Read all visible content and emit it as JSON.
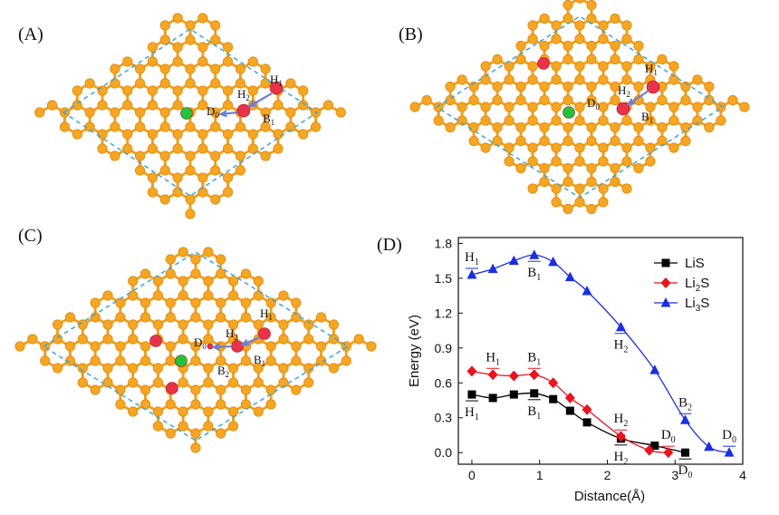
{
  "panels": {
    "A": {
      "label": "(A)",
      "sites": [
        {
          "name": "H",
          "sub": "1"
        },
        {
          "name": "H",
          "sub": "2"
        },
        {
          "name": "D",
          "sub": "0"
        },
        {
          "name": "B",
          "sub": "1"
        }
      ]
    },
    "B": {
      "label": "(B)",
      "sites": [
        {
          "name": "H",
          "sub": "1"
        },
        {
          "name": "H",
          "sub": "2"
        },
        {
          "name": "D",
          "sub": "0"
        },
        {
          "name": "B",
          "sub": "1"
        }
      ]
    },
    "C": {
      "label": "(C)",
      "sites": [
        {
          "name": "H",
          "sub": "1"
        },
        {
          "name": "H",
          "sub": "2"
        },
        {
          "name": "D",
          "sub": "0"
        },
        {
          "name": "B",
          "sub": "1"
        },
        {
          "name": "B",
          "sub": "2"
        }
      ]
    },
    "D": {
      "label": "(D)"
    }
  },
  "colors": {
    "carbon": "#f5a623",
    "bond": "#f0a020",
    "li": "#e8334a",
    "s": "#22c33a",
    "cell": "#3aa6d8",
    "arrow": "#6a7fd6"
  },
  "chart_data": {
    "type": "line",
    "xlabel": "Distance(Å)",
    "ylabel": "Energy (eV)",
    "xlim": [
      -0.2,
      4
    ],
    "ylim": [
      -0.1,
      1.85
    ],
    "xticks": [
      0,
      1,
      2,
      3,
      4
    ],
    "yticks": [
      0.0,
      0.3,
      0.6,
      0.9,
      1.2,
      1.5,
      1.8
    ],
    "legend_position": "top-right",
    "series": [
      {
        "name": "LiS",
        "name_main": "LiS",
        "name_sub": "",
        "name_tail": "",
        "color": "#000000",
        "marker": "square",
        "x": [
          0.0,
          0.31,
          0.62,
          0.92,
          1.2,
          1.45,
          1.7,
          2.2,
          2.7,
          3.15
        ],
        "y": [
          0.5,
          0.47,
          0.5,
          0.51,
          0.46,
          0.36,
          0.26,
          0.12,
          0.06,
          0.0
        ],
        "annotations": [
          {
            "name": "H",
            "sub": "1",
            "x": 0.0,
            "y": 0.5,
            "pos": "below"
          },
          {
            "name": "B",
            "sub": "1",
            "x": 0.92,
            "y": 0.51,
            "pos": "below"
          },
          {
            "name": "H",
            "sub": "2",
            "x": 2.2,
            "y": 0.12,
            "pos": "below"
          },
          {
            "name": "D",
            "sub": "0",
            "x": 3.15,
            "y": 0.0,
            "pos": "below"
          }
        ]
      },
      {
        "name": "Li2S",
        "name_main": "Li",
        "name_sub": "2",
        "name_tail": "S",
        "color": "#e8141e",
        "marker": "diamond",
        "x": [
          0.0,
          0.31,
          0.62,
          0.92,
          1.2,
          1.45,
          1.7,
          2.2,
          2.62,
          2.9
        ],
        "y": [
          0.7,
          0.67,
          0.66,
          0.67,
          0.6,
          0.47,
          0.37,
          0.14,
          0.02,
          0.0
        ],
        "annotations": [
          {
            "name": "H",
            "sub": "1",
            "x": 0.31,
            "y": 0.67,
            "pos": "above"
          },
          {
            "name": "B",
            "sub": "1",
            "x": 0.92,
            "y": 0.67,
            "pos": "above"
          },
          {
            "name": "H",
            "sub": "2",
            "x": 2.2,
            "y": 0.14,
            "pos": "above"
          },
          {
            "name": "D",
            "sub": "0",
            "x": 2.9,
            "y": 0.0,
            "pos": "above"
          }
        ]
      },
      {
        "name": "Li3S",
        "name_main": "Li",
        "name_sub": "3",
        "name_tail": "S",
        "color": "#1c2fe0",
        "marker": "triangle",
        "x": [
          0.0,
          0.31,
          0.62,
          0.92,
          1.2,
          1.45,
          1.7,
          2.2,
          2.7,
          3.15,
          3.5,
          3.8
        ],
        "y": [
          1.53,
          1.58,
          1.65,
          1.7,
          1.64,
          1.51,
          1.39,
          1.08,
          0.71,
          0.28,
          0.05,
          0.0
        ],
        "annotations": [
          {
            "name": "H",
            "sub": "1",
            "x": 0.0,
            "y": 1.53,
            "pos": "above"
          },
          {
            "name": "B",
            "sub": "1",
            "x": 0.92,
            "y": 1.7,
            "pos": "below"
          },
          {
            "name": "H",
            "sub": "2",
            "x": 2.2,
            "y": 1.08,
            "pos": "below"
          },
          {
            "name": "B",
            "sub": "2",
            "x": 3.15,
            "y": 0.28,
            "pos": "above"
          },
          {
            "name": "D",
            "sub": "0",
            "x": 3.8,
            "y": 0.0,
            "pos": "above"
          }
        ]
      }
    ]
  }
}
